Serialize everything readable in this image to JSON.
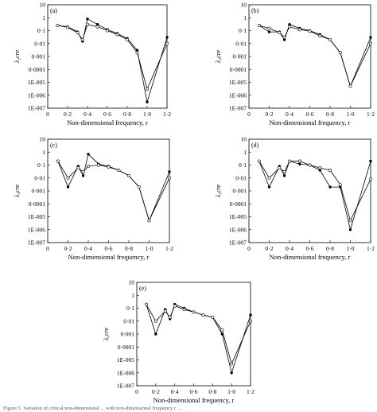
{
  "caption": "Figure 5. Variation of critical non-dimensional ... with non-dimensional frequency r ...",
  "chart_data": [
    {
      "type": "line",
      "panel_label": "(a)",
      "xlabel": "Non-dimensional frequency, r",
      "ylabel": "λ₂cre",
      "xlim": [
        0,
        1.2
      ],
      "ylim": [
        1e-07,
        10
      ],
      "yscale": "log",
      "xticks": [
        "0",
        "0·2",
        "0·4",
        "0·6",
        "0·8",
        "1·0",
        "1·2"
      ],
      "yticks": [
        "10",
        "1",
        "0·1",
        "0·01",
        "0·001",
        "0·0001",
        "1E-005",
        "1E-006",
        "1E-007"
      ],
      "series": [
        {
          "marker": "filled",
          "x": [
            0.1,
            0.2,
            0.3,
            0.35,
            0.4,
            0.5,
            0.6,
            0.7,
            0.8,
            0.9,
            1.0,
            1.2
          ],
          "y": [
            0.25,
            0.2,
            0.08,
            0.015,
            0.8,
            0.3,
            0.12,
            0.06,
            0.025,
            0.003,
            3e-07,
            0.03
          ]
        },
        {
          "marker": "open",
          "x": [
            0.1,
            0.2,
            0.3,
            0.35,
            0.4,
            0.5,
            0.6,
            0.7,
            0.8,
            0.9,
            1.0,
            1.2
          ],
          "y": [
            0.25,
            0.18,
            0.07,
            0.02,
            0.3,
            0.2,
            0.1,
            0.05,
            0.02,
            0.002,
            3e-06,
            0.01
          ]
        }
      ]
    },
    {
      "type": "line",
      "panel_label": "(b)",
      "xlabel": "Non-dimensional frequency, r",
      "ylabel": "λ₃cre",
      "xlim": [
        0,
        1.2
      ],
      "ylim": [
        1e-07,
        10
      ],
      "yscale": "log",
      "xticks": [
        "0",
        "0·2",
        "0·4",
        "0·6",
        "0·8",
        "1·0",
        "1·2"
      ],
      "yticks": [
        "10",
        "1",
        "0·1",
        "0·01",
        "0·001",
        "0·0001",
        "1E-005",
        "1E-006",
        "1E-007"
      ],
      "series": [
        {
          "marker": "filled",
          "x": [
            0.1,
            0.2,
            0.3,
            0.35,
            0.4,
            0.5,
            0.6,
            0.7,
            0.8,
            0.9,
            1.0,
            1.2
          ],
          "y": [
            0.25,
            0.08,
            0.08,
            0.02,
            0.3,
            0.15,
            0.1,
            0.05,
            0.02,
            0.002,
            5e-06,
            0.03
          ]
        },
        {
          "marker": "open",
          "x": [
            0.1,
            0.2,
            0.3,
            0.35,
            0.4,
            0.5,
            0.6,
            0.7,
            0.8,
            0.9,
            1.0,
            1.2
          ],
          "y": [
            0.25,
            0.15,
            0.07,
            0.03,
            0.2,
            0.12,
            0.09,
            0.04,
            0.02,
            0.002,
            5e-06,
            0.01
          ]
        }
      ]
    },
    {
      "type": "line",
      "panel_label": "(c)",
      "xlabel": "Non-dimensional frequency, r",
      "ylabel": "λ₄cre",
      "xlim": [
        0,
        1.2
      ],
      "ylim": [
        1e-07,
        10
      ],
      "yscale": "log",
      "xticks": [
        "0",
        "0·2",
        "0·4",
        "0·6",
        "0·8",
        "1·0",
        "1·2"
      ],
      "yticks": [
        "10",
        "1",
        "0·1",
        "0·01",
        "0·001",
        "0·0001",
        "1E-005",
        "1E-006",
        "1E-007"
      ],
      "series": [
        {
          "marker": "filled",
          "x": [
            0.1,
            0.2,
            0.3,
            0.35,
            0.4,
            0.5,
            0.6,
            0.7,
            0.8,
            0.9,
            1.0,
            1.2
          ],
          "y": [
            0.2,
            0.002,
            0.08,
            0.015,
            0.7,
            0.12,
            0.08,
            0.04,
            0.015,
            0.002,
            5e-06,
            0.03
          ]
        },
        {
          "marker": "open",
          "x": [
            0.1,
            0.2,
            0.3,
            0.35,
            0.4,
            0.5,
            0.6,
            0.7,
            0.8,
            0.9,
            1.0,
            1.2
          ],
          "y": [
            0.2,
            0.01,
            0.06,
            0.03,
            0.08,
            0.1,
            0.07,
            0.04,
            0.015,
            0.002,
            5e-06,
            0.01
          ]
        }
      ]
    },
    {
      "type": "line",
      "panel_label": "(d)",
      "xlabel": "Non-dimensional frequency, r",
      "ylabel": "λ₅cre",
      "xlim": [
        0,
        1.2
      ],
      "ylim": [
        1e-07,
        10
      ],
      "yscale": "log",
      "xticks": [
        "0",
        "0·2",
        "0·4",
        "0·6",
        "0·8",
        "1·0",
        "1·2"
      ],
      "yticks": [
        "10",
        "1",
        "0·1",
        "0·01",
        "0·001",
        "0·0001",
        "1E-005",
        "1E-006",
        "1E-007"
      ],
      "series": [
        {
          "marker": "filled",
          "x": [
            0.1,
            0.2,
            0.3,
            0.35,
            0.4,
            0.5,
            0.6,
            0.7,
            0.8,
            0.9,
            1.0,
            1.2
          ],
          "y": [
            0.2,
            0.002,
            0.08,
            0.015,
            0.2,
            0.12,
            0.1,
            0.04,
            0.002,
            0.002,
            1e-06,
            0.2
          ]
        },
        {
          "marker": "open",
          "x": [
            0.1,
            0.2,
            0.3,
            0.35,
            0.4,
            0.5,
            0.6,
            0.7,
            0.8,
            0.9,
            1.0,
            1.2
          ],
          "y": [
            0.2,
            0.01,
            0.06,
            0.03,
            0.2,
            0.2,
            0.1,
            0.06,
            0.04,
            0.003,
            5e-06,
            0.008
          ]
        }
      ]
    },
    {
      "type": "line",
      "panel_label": "(e)",
      "xlabel": "Non-dimensional frequency, r",
      "ylabel": "λ₆cre",
      "xlim": [
        0,
        1.2
      ],
      "ylim": [
        1e-07,
        10
      ],
      "yscale": "log",
      "xticks": [
        "0",
        "0·2",
        "0·4",
        "0·6",
        "0·8",
        "1·0",
        "1·2"
      ],
      "yticks": [
        "10",
        "1",
        "0·1",
        "0·01",
        "0·001",
        "0·0001",
        "1E-005",
        "1E-006",
        "1E-007"
      ],
      "series": [
        {
          "marker": "filled",
          "x": [
            0.1,
            0.2,
            0.3,
            0.35,
            0.4,
            0.5,
            0.6,
            0.7,
            0.8,
            0.9,
            1.0,
            1.2
          ],
          "y": [
            0.2,
            0.001,
            0.08,
            0.015,
            0.2,
            0.1,
            0.05,
            0.03,
            0.02,
            0.001,
            1e-06,
            0.03
          ]
        },
        {
          "marker": "open",
          "x": [
            0.1,
            0.2,
            0.3,
            0.35,
            0.4,
            0.5,
            0.6,
            0.7,
            0.8,
            0.9,
            1.0,
            1.2
          ],
          "y": [
            0.2,
            0.01,
            0.06,
            0.02,
            0.15,
            0.08,
            0.05,
            0.03,
            0.02,
            0.002,
            5e-06,
            0.01
          ]
        }
      ]
    }
  ]
}
